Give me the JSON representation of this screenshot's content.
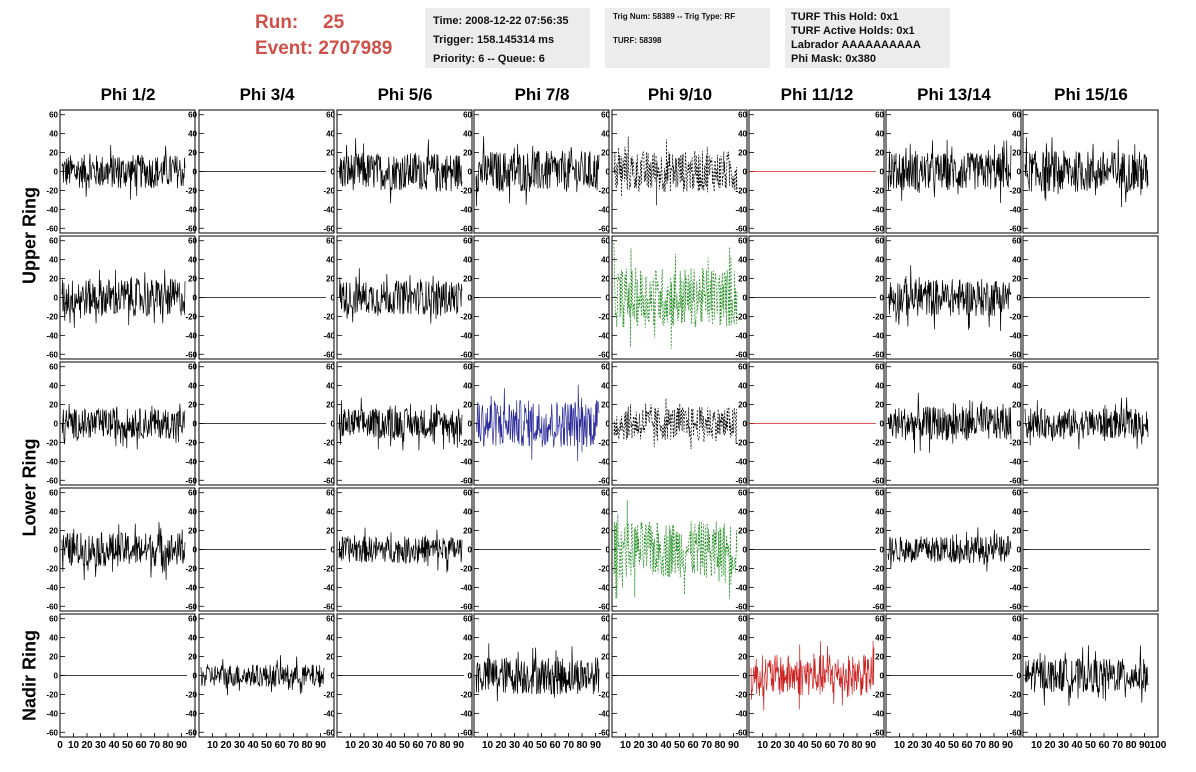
{
  "header": {
    "run_label": "Run:",
    "run_value": "25",
    "event_label": "Event:",
    "event_value": "2707989",
    "box1": [
      "Time: 2008-12-22 07:56:35",
      "Trigger: 158.145314 ms",
      "Priority: 6 -- Queue: 6"
    ],
    "box2_line1": "Trig Num: 58389 -- Trig Type: RF",
    "box2_line2": "TURF: 58398",
    "box3": [
      "TURF This Hold: 0x1",
      "TURF Active Holds: 0x1",
      "Labrador AAAAAAAAAA",
      "Phi Mask: 0x380"
    ]
  },
  "columns": [
    "Phi 1/2",
    "Phi 3/4",
    "Phi 5/6",
    "Phi 7/8",
    "Phi 9/10",
    "Phi 11/12",
    "Phi 13/14",
    "Phi 15/16"
  ],
  "row_groups": [
    "Upper Ring",
    "Lower Ring",
    "Nadir Ring"
  ],
  "colors": {
    "header_red": "#d0504a",
    "box_bg": "#ececec",
    "trace_default": "#000000",
    "trace_green": "#1e8c1e",
    "trace_blue": "#2a2a9a",
    "trace_red": "#cc2222"
  },
  "chart_data": {
    "type": "line",
    "description_of_panels": "5 rows x 8 columns of waveform panels",
    "ylim": [
      -65,
      65
    ],
    "yticks": [
      -60,
      -40,
      -20,
      0,
      20,
      40,
      60
    ],
    "xlim": [
      0,
      100
    ],
    "xticks": [
      0,
      10,
      20,
      30,
      40,
      50,
      60,
      70,
      80,
      90,
      100
    ],
    "panels": [
      [
        {
          "style": "noise",
          "amp": 18,
          "color": "#000000"
        },
        {
          "style": "flat",
          "color": "#000000"
        },
        {
          "style": "noise",
          "amp": 20,
          "color": "#000000"
        },
        {
          "style": "noise",
          "amp": 22,
          "color": "#000000"
        },
        {
          "style": "dashed",
          "amp": 22,
          "color": "#000000"
        },
        {
          "style": "flat",
          "color": "#cc2222"
        },
        {
          "style": "noise",
          "amp": 20,
          "color": "#000000"
        },
        {
          "style": "noise",
          "amp": 22,
          "color": "#000000"
        }
      ],
      [
        {
          "style": "noise",
          "amp": 20,
          "color": "#000000"
        },
        {
          "style": "flat",
          "color": "#000000"
        },
        {
          "style": "noise",
          "amp": 18,
          "color": "#000000"
        },
        {
          "style": "flat",
          "color": "#000000"
        },
        {
          "style": "dashed",
          "amp": 32,
          "color": "#1e8c1e"
        },
        {
          "style": "flat",
          "color": "#000000"
        },
        {
          "style": "noise",
          "amp": 20,
          "color": "#000000"
        },
        {
          "style": "flat",
          "color": "#000000"
        }
      ],
      [
        {
          "style": "noise",
          "amp": 16,
          "color": "#000000"
        },
        {
          "style": "flat",
          "color": "#000000"
        },
        {
          "style": "noise",
          "amp": 16,
          "color": "#000000"
        },
        {
          "style": "noise",
          "amp": 25,
          "color": "#2a2a9a"
        },
        {
          "style": "dashed",
          "amp": 18,
          "color": "#000000"
        },
        {
          "style": "flat",
          "color": "#cc2222"
        },
        {
          "style": "noise",
          "amp": 18,
          "color": "#000000"
        },
        {
          "style": "noise",
          "amp": 16,
          "color": "#000000"
        }
      ],
      [
        {
          "style": "noise",
          "amp": 18,
          "color": "#000000"
        },
        {
          "style": "flat",
          "color": "#000000"
        },
        {
          "style": "noise",
          "amp": 14,
          "color": "#000000"
        },
        {
          "style": "flat",
          "color": "#000000"
        },
        {
          "style": "dashed",
          "amp": 30,
          "color": "#1e8c1e"
        },
        {
          "style": "flat",
          "color": "#000000"
        },
        {
          "style": "noise",
          "amp": 14,
          "color": "#000000"
        },
        {
          "style": "flat",
          "color": "#000000"
        }
      ],
      [
        {
          "style": "flat",
          "color": "#000000"
        },
        {
          "style": "noise",
          "amp": 12,
          "color": "#000000"
        },
        {
          "style": "flat",
          "color": "#000000"
        },
        {
          "style": "noise",
          "amp": 20,
          "color": "#000000"
        },
        {
          "style": "flat",
          "color": "#000000"
        },
        {
          "style": "noise",
          "amp": 22,
          "color": "#cc2222"
        },
        {
          "style": "flat",
          "color": "#000000"
        },
        {
          "style": "noise",
          "amp": 18,
          "color": "#000000"
        }
      ]
    ]
  }
}
